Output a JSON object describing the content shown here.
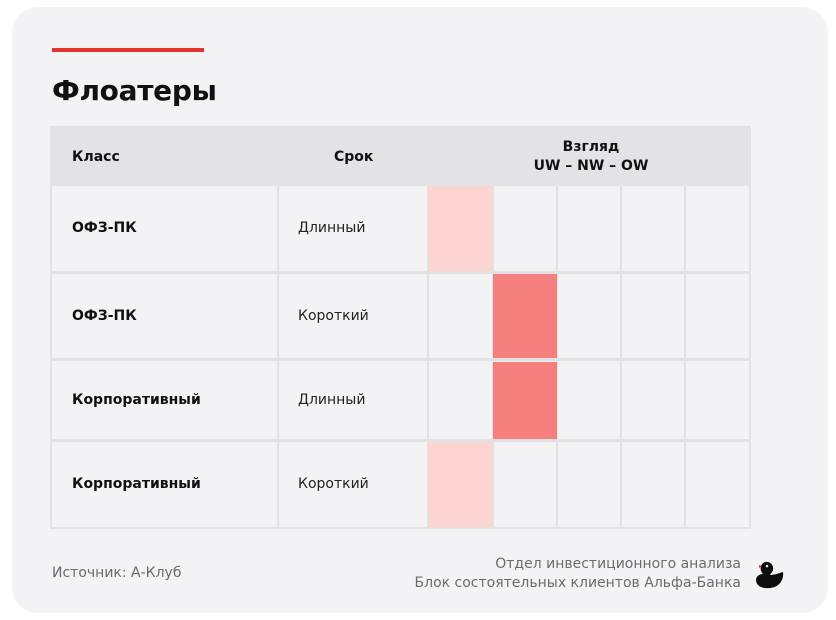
{
  "header": {
    "title": "Флоатеры"
  },
  "table": {
    "columns": {
      "class": "Класс",
      "term": "Срок",
      "view": "Взгляд",
      "view_scale": "UW – NW – OW"
    },
    "rows": [
      {
        "class": "ОФЗ-ПК",
        "term": "Длинный",
        "level": 1,
        "intensity": "light"
      },
      {
        "class": "ОФЗ-ПК",
        "term": "Короткий",
        "level": 2,
        "intensity": "strong"
      },
      {
        "class": "Корпоративный",
        "term": "Длинный",
        "level": 2,
        "intensity": "strong"
      },
      {
        "class": "Корпоративный",
        "term": "Короткий",
        "level": 1,
        "intensity": "light"
      }
    ]
  },
  "chart_data": {
    "type": "table",
    "title": "Флоатеры",
    "columns": [
      "Класс",
      "Срок",
      "Взгляд UW – NW – OW"
    ],
    "scale_positions": 5,
    "rows": [
      {
        "class": "ОФЗ-ПК",
        "term": "Длинный",
        "position": 1
      },
      {
        "class": "ОФЗ-ПК",
        "term": "Короткий",
        "position": 2
      },
      {
        "class": "Корпоративный",
        "term": "Длинный",
        "position": 2
      },
      {
        "class": "Корпоративный",
        "term": "Короткий",
        "position": 1
      }
    ]
  },
  "colors": {
    "accent": "#e63329",
    "light": "#fcd4d1",
    "strong": "#f57f7f"
  },
  "footer": {
    "source": "Источник: А-Клуб",
    "dept_line1": "Отдел инвестиционного анализа",
    "dept_line2": "Блок состоятельных клиентов Альфа-Банка",
    "logo_icon": "duck-logo-icon"
  }
}
